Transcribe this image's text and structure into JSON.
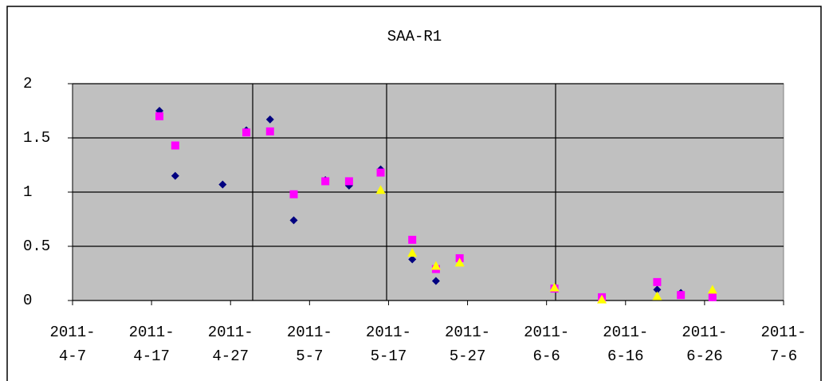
{
  "chart_data": {
    "type": "scatter",
    "title": "SAA-R1",
    "xlim": [
      "2011-4-7",
      "2011-7-6"
    ],
    "xticks": [
      "2011-4-7",
      "2011-4-17",
      "2011-4-27",
      "2011-5-7",
      "2011-5-17",
      "2011-5-27",
      "2011-6-6",
      "2011-6-16",
      "2011-6-26",
      "2011-7-6"
    ],
    "ylim": [
      0,
      2
    ],
    "yticks": [
      0,
      0.5,
      1,
      1.5,
      2
    ],
    "grid": true,
    "series": [
      {
        "color": "#000080",
        "marker": "diamond",
        "x": [
          "2011-4-18",
          "2011-4-20",
          "2011-4-26",
          "2011-4-29",
          "2011-5-2",
          "2011-5-5",
          "2011-5-9",
          "2011-5-12",
          "2011-5-16",
          "2011-5-20",
          "2011-5-23",
          "2011-5-26",
          "2011-6-7",
          "2011-6-13",
          "2011-6-20",
          "2011-6-23",
          "2011-6-27"
        ],
        "values": [
          1.75,
          1.15,
          1.07,
          1.57,
          1.67,
          0.74,
          1.11,
          1.06,
          1.21,
          0.38,
          0.18,
          0.37,
          0.11,
          0.02,
          0.1,
          0.07,
          0.03
        ]
      },
      {
        "color": "#ff00ff",
        "marker": "square",
        "x": [
          "2011-4-18",
          "2011-4-20",
          "2011-4-29",
          "2011-5-2",
          "2011-5-5",
          "2011-5-9",
          "2011-5-12",
          "2011-5-16",
          "2011-5-20",
          "2011-5-23",
          "2011-5-26",
          "2011-6-7",
          "2011-6-13",
          "2011-6-20",
          "2011-6-23",
          "2011-6-27"
        ],
        "values": [
          1.7,
          1.43,
          1.55,
          1.56,
          0.98,
          1.1,
          1.1,
          1.18,
          0.56,
          0.29,
          0.39,
          0.11,
          0.03,
          0.17,
          0.05,
          0.03
        ]
      },
      {
        "color": "#ffff00",
        "marker": "triangle",
        "x": [
          "2011-5-16",
          "2011-5-20",
          "2011-5-23",
          "2011-5-26",
          "2011-6-7",
          "2011-6-13",
          "2011-6-20",
          "2011-6-27"
        ],
        "values": [
          1.02,
          0.44,
          0.32,
          0.35,
          0.12,
          0.01,
          0.04,
          0.1
        ]
      }
    ]
  }
}
